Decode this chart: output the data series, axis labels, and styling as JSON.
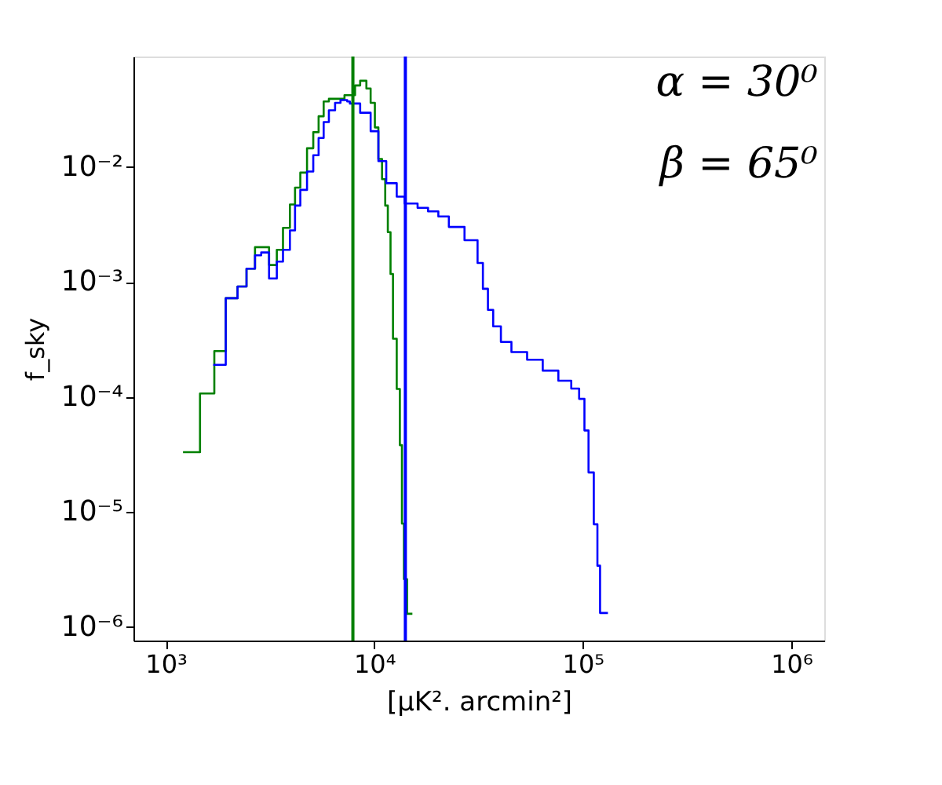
{
  "chart_data": {
    "type": "step",
    "xlabel": "[μK². arcmin²]",
    "ylabel": "f_sky",
    "log": "xy",
    "grid": false,
    "xlim": [
      700,
      1440000
    ],
    "ylim": [
      7.6e-07,
      0.091
    ],
    "xticks": [
      {
        "value": 1000,
        "label": "10³"
      },
      {
        "value": 10000,
        "label": "10⁴"
      },
      {
        "value": 100000,
        "label": "10⁵"
      },
      {
        "value": 1000000,
        "label": "10⁶"
      }
    ],
    "yticks": [
      {
        "value": 1e-06,
        "label": "10⁻⁶"
      },
      {
        "value": 1e-05,
        "label": "10⁻⁵"
      },
      {
        "value": 0.0001,
        "label": "10⁻⁴"
      },
      {
        "value": 0.001,
        "label": "10⁻³"
      },
      {
        "value": 0.01,
        "label": "10⁻²"
      }
    ],
    "series": [
      {
        "color": "#008000",
        "x": [
          1210,
          1460,
          1710,
          1940,
          2210,
          2440,
          2680,
          3130,
          3410,
          3650,
          3940,
          4170,
          4420,
          4760,
          5100,
          5410,
          5720,
          6060,
          7200,
          8090,
          8560,
          9170,
          9610,
          10070,
          10470,
          10900,
          11290,
          11620,
          11970,
          12300,
          12820,
          13270,
          13580,
          13880,
          14370,
          15240
        ],
        "values": [
          3.3e-05,
          0.000107,
          0.00025,
          0.00072,
          0.00091,
          0.0013,
          0.002,
          0.0014,
          0.0019,
          0.00295,
          0.0047,
          0.0066,
          0.0089,
          0.0145,
          0.02,
          0.0275,
          0.037,
          0.039,
          0.042,
          0.051,
          0.056,
          0.048,
          0.036,
          0.022,
          0.0117,
          0.0078,
          0.0046,
          0.0027,
          0.00117,
          0.00032,
          0.000117,
          3.8e-05,
          7.9e-06,
          2.6e-06,
          1.3e-06,
          1.3e-06
        ]
      },
      {
        "color": "#0000ff",
        "x": [
          1690,
          1940,
          2210,
          2440,
          2680,
          2870,
          3130,
          3410,
          3650,
          3940,
          4170,
          4420,
          4760,
          5100,
          5410,
          5720,
          6060,
          6490,
          6890,
          7420,
          7640,
          8560,
          9610,
          10470,
          11420,
          12820,
          13980,
          16140,
          18120,
          20300,
          22800,
          27100,
          31300,
          33200,
          35100,
          37200,
          40500,
          45500,
          54100,
          64300,
          76400,
          88100,
          96100,
          101900,
          106600,
          113000,
          117600,
          121100,
          132100
        ],
        "values": [
          0.00019,
          0.00072,
          0.00091,
          0.0013,
          0.0017,
          0.0018,
          0.00107,
          0.0015,
          0.0019,
          0.0028,
          0.0046,
          0.0063,
          0.0091,
          0.0126,
          0.0178,
          0.0245,
          0.031,
          0.036,
          0.038,
          0.037,
          0.0355,
          0.0295,
          0.0204,
          0.0112,
          0.0072,
          0.0055,
          0.0048,
          0.0044,
          0.0041,
          0.0037,
          0.003,
          0.0023,
          0.00146,
          0.00087,
          0.00057,
          0.00041,
          0.0003,
          0.000245,
          0.00021,
          0.000169,
          0.000138,
          0.000118,
          9.6e-05,
          5.1e-05,
          2.2e-05,
          7.8e-06,
          3.4e-06,
          1.32e-06,
          1.32e-06
        ]
      }
    ],
    "ref_lines": [
      {
        "axis": "x",
        "value": 7900,
        "color": "#008000"
      },
      {
        "axis": "x",
        "value": 14100,
        "color": "#0000ff"
      }
    ],
    "annotations": [
      "α = 30⁰",
      "β = 65⁰"
    ]
  }
}
